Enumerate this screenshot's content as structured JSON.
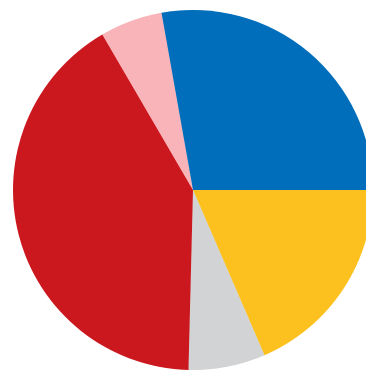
{
  "chart_data": {
    "type": "pie",
    "slices": [
      {
        "value": 18.5,
        "color": "#FDC11F"
      },
      {
        "value": 6.9,
        "color": "#D1D3D4"
      },
      {
        "value": 41.2,
        "color": "#CB171E"
      },
      {
        "value": 5.6,
        "color": "#F8B4B8"
      },
      {
        "value": 27.8,
        "color": "#006EBA"
      }
    ],
    "start_angle_deg": 0,
    "direction": "clockwise"
  }
}
